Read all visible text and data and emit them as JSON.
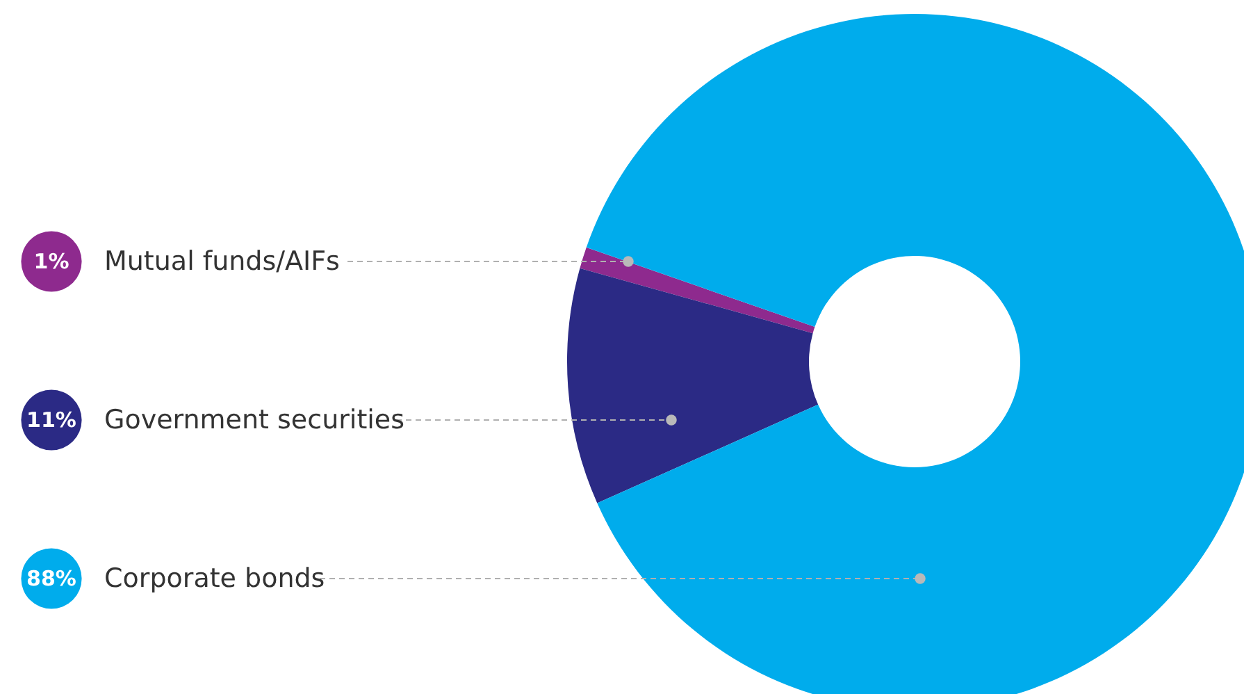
{
  "chart_data": {
    "type": "donut",
    "categories": [
      "Mutual funds/AIFs",
      "Government securities",
      "Corporate bonds"
    ],
    "values": [
      1,
      11,
      88
    ],
    "value_labels": [
      "1%",
      "11%",
      "88%"
    ],
    "colors": [
      "#8e2a8e",
      "#2b2a85",
      "#00acec"
    ],
    "legend": "left"
  }
}
